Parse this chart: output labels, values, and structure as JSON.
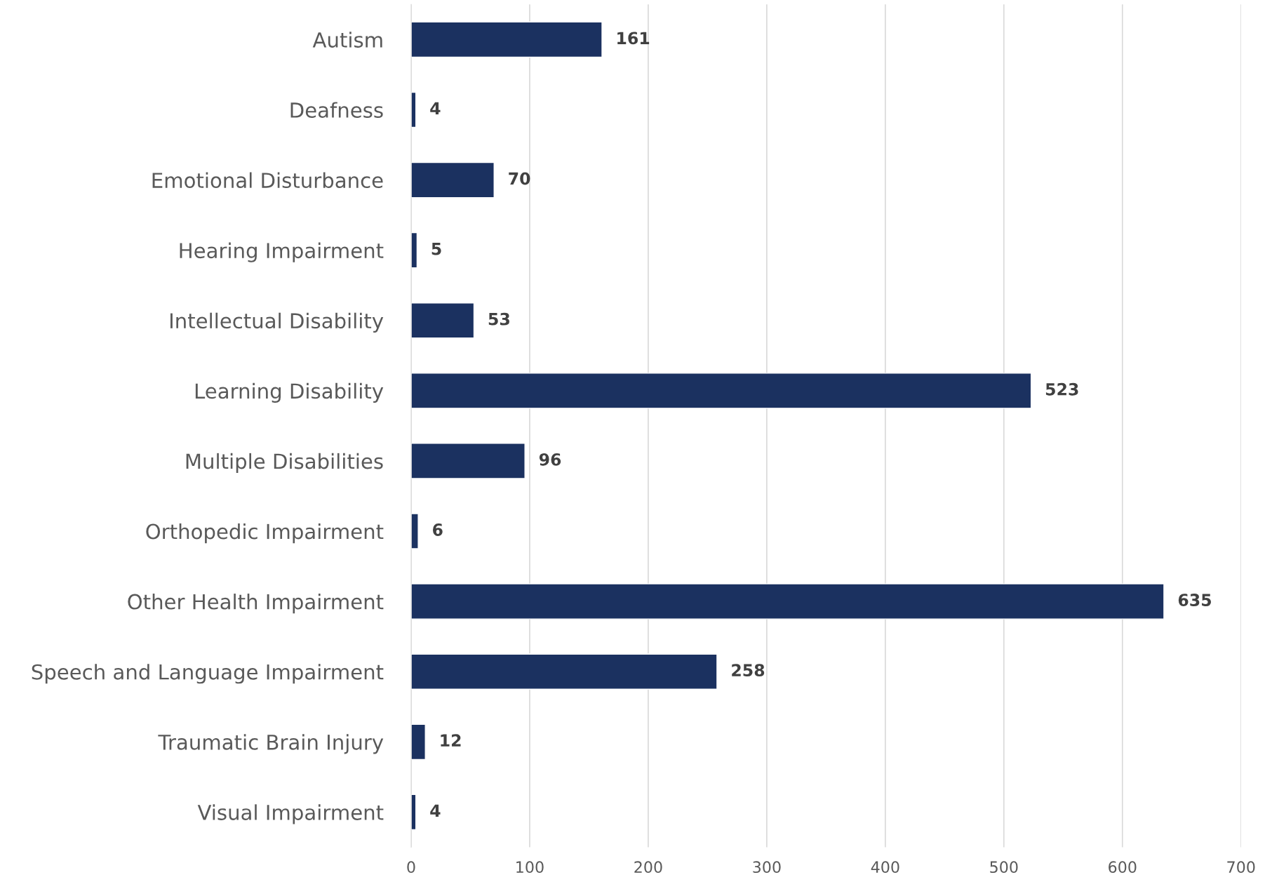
{
  "chart_data": {
    "type": "bar",
    "orientation": "horizontal",
    "categories": [
      "Autism",
      "Deafness",
      "Emotional Disturbance",
      "Hearing Impairment",
      "Intellectual Disability",
      "Learning Disability",
      "Multiple Disabilities",
      "Orthopedic Impairment",
      "Other Health Impairment",
      "Speech and Language Impairment",
      "Traumatic Brain Injury",
      "Visual Impairment"
    ],
    "values": [
      161,
      4,
      70,
      5,
      53,
      523,
      96,
      6,
      635,
      258,
      12,
      4
    ],
    "color": "#1b3160",
    "xlim": [
      0,
      700
    ],
    "xticks": [
      0,
      100,
      200,
      300,
      400,
      500,
      600,
      700
    ],
    "grid": "x",
    "data_labels": true
  }
}
